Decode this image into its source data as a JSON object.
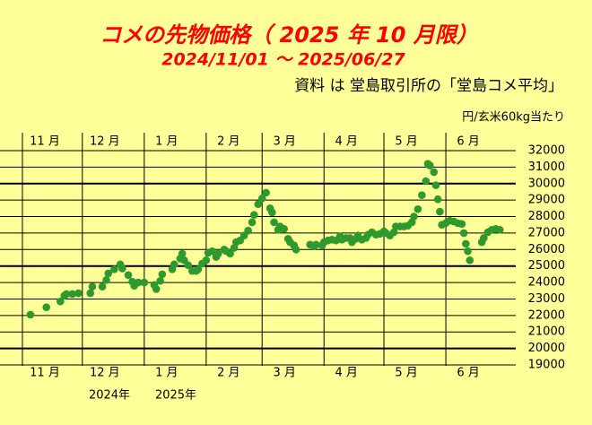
{
  "chart_data": {
    "type": "scatter",
    "title": "コメの先物価格（ 2025 年 10 月限）",
    "subtitle": "2024/11/01 ～ 2025/06/27",
    "source": "資料 は 堂島取引所の「堂島コメ平均」",
    "y_label": "円/玄米60kg当たり",
    "year_labels": [
      "2024年",
      "2025年"
    ],
    "xlim": [
      0,
      247
    ],
    "xticks": [
      {
        "value": 0,
        "label": "11 月"
      },
      {
        "value": 30,
        "label": "12 月"
      },
      {
        "value": 61,
        "label": "1 月"
      },
      {
        "value": 92,
        "label": "2 月"
      },
      {
        "value": 120,
        "label": "3 月"
      },
      {
        "value": 151,
        "label": "4 月"
      },
      {
        "value": 181,
        "label": "5 月"
      },
      {
        "value": 212,
        "label": "6 月"
      }
    ],
    "ylim": [
      19000,
      32000
    ],
    "yticks": [
      19000,
      20000,
      21000,
      22000,
      23000,
      24000,
      25000,
      26000,
      27000,
      28000,
      29000,
      30000,
      31000,
      32000
    ],
    "grid": true,
    "color": "#2e9a2e",
    "x": [
      4,
      12,
      19,
      21,
      22,
      25,
      28,
      34,
      35,
      40,
      42,
      43,
      46,
      49,
      50,
      53,
      55,
      56,
      58,
      61,
      66,
      67,
      69,
      70,
      75,
      76,
      79,
      80,
      81,
      83,
      85,
      87,
      88,
      90,
      92,
      93,
      95,
      97,
      98,
      101,
      102,
      104,
      106,
      107,
      109,
      111,
      113,
      115,
      116,
      118,
      120,
      122,
      124,
      125,
      126,
      128,
      129,
      131,
      133,
      134,
      136,
      137,
      144,
      146,
      147,
      150,
      151,
      153,
      155,
      157,
      159,
      160,
      162,
      164,
      165,
      167,
      168,
      170,
      172,
      173,
      175,
      177,
      179,
      181,
      182,
      184,
      186,
      187,
      189,
      191,
      193,
      195,
      196,
      198,
      200,
      202,
      203,
      204,
      206,
      207,
      208,
      209,
      210,
      212,
      214,
      216,
      218,
      220,
      221,
      222,
      223,
      224,
      230,
      231,
      233,
      235,
      237,
      239
    ],
    "values": [
      22050,
      22500,
      22850,
      23200,
      23300,
      23300,
      23350,
      23350,
      23750,
      23750,
      24150,
      24550,
      24800,
      25100,
      24850,
      24450,
      24050,
      23800,
      24000,
      24000,
      23850,
      23600,
      24100,
      24500,
      24800,
      25100,
      25450,
      25750,
      25350,
      25050,
      24700,
      24700,
      24800,
      25150,
      25350,
      25800,
      25900,
      25550,
      25750,
      26000,
      25900,
      25750,
      26100,
      26450,
      26550,
      26850,
      27150,
      27650,
      28100,
      28750,
      29100,
      29450,
      28500,
      28250,
      27650,
      27200,
      27400,
      27250,
      26650,
      26450,
      26250,
      26000,
      26300,
      26200,
      26300,
      26250,
      26450,
      26550,
      26600,
      26550,
      26800,
      26600,
      26700,
      26700,
      26450,
      26650,
      26850,
      26600,
      26700,
      26900,
      27050,
      26900,
      26950,
      27100,
      27000,
      26850,
      27050,
      27400,
      27400,
      27400,
      27450,
      27650,
      28000,
      28450,
      29300,
      30150,
      31200,
      31100,
      30700,
      29900,
      29050,
      28300,
      27500,
      27600,
      27750,
      27700,
      27600,
      27550,
      27000,
      26350,
      25900,
      25350,
      26450,
      26700,
      27050,
      27200,
      27250,
      27200
    ]
  }
}
